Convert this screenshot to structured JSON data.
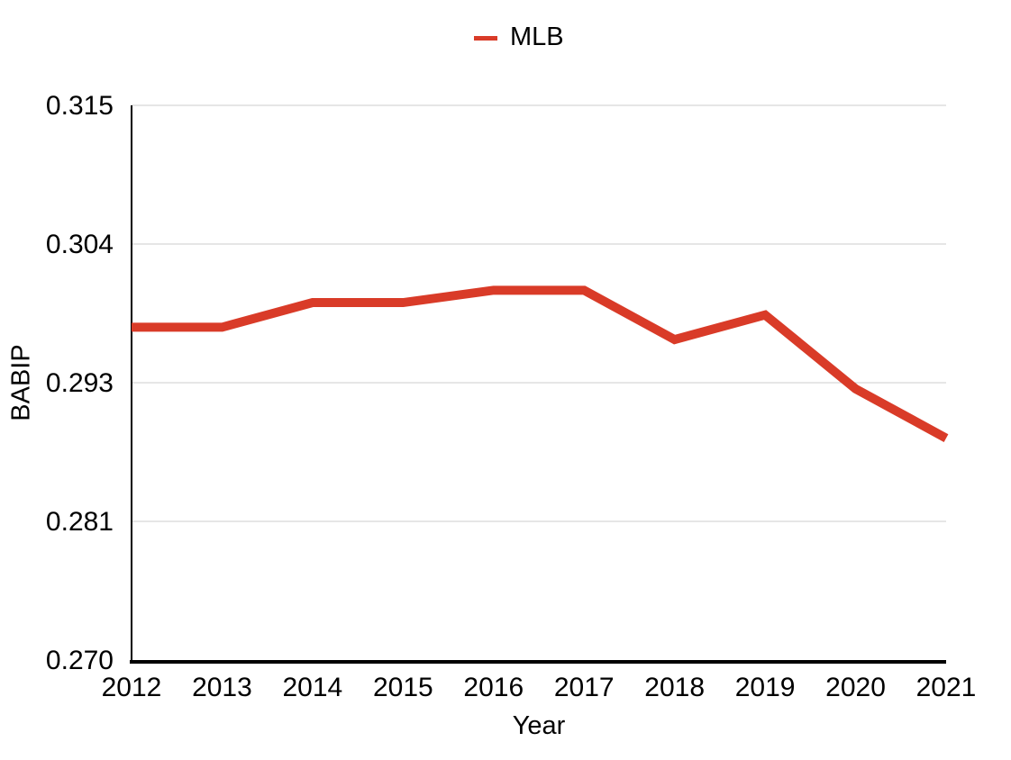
{
  "legend": {
    "series_label": "MLB"
  },
  "colors": {
    "series": "#D93B28",
    "grid": "#CCCCCC",
    "axis": "#000000",
    "text": "#000000"
  },
  "chart_data": {
    "type": "line",
    "title": "",
    "xlabel": "Year",
    "ylabel": "BABIP",
    "x": [
      "2012",
      "2013",
      "2014",
      "2015",
      "2016",
      "2017",
      "2018",
      "2019",
      "2020",
      "2021"
    ],
    "series": [
      {
        "name": "MLB",
        "color": "#D93B28",
        "values": [
          0.297,
          0.297,
          0.299,
          0.299,
          0.3,
          0.3,
          0.296,
          0.298,
          0.292,
          0.288
        ]
      }
    ],
    "ylim": [
      0.27,
      0.315
    ],
    "y_ticks": [
      0.27,
      0.28125,
      0.2925,
      0.30375,
      0.315
    ],
    "y_tick_labels": [
      "0.270",
      "0.281",
      "0.293",
      "0.304",
      "0.315"
    ],
    "grid": "horizontal",
    "legend_position": "top-center",
    "line_width": 10
  }
}
